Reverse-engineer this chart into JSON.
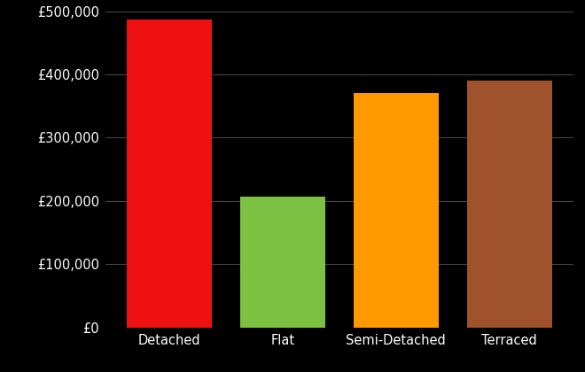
{
  "categories": [
    "Detached",
    "Flat",
    "Semi-Detached",
    "Terraced"
  ],
  "values": [
    487000,
    207000,
    370000,
    390000
  ],
  "bar_colors": [
    "#ee1111",
    "#7dc142",
    "#ff9900",
    "#a0522d"
  ],
  "background_color": "#000000",
  "text_color": "#ffffff",
  "grid_color": "#555555",
  "ylim": [
    0,
    500000
  ],
  "yticks": [
    0,
    100000,
    200000,
    300000,
    400000,
    500000
  ],
  "bar_width": 0.75,
  "tick_fontsize": 10.5,
  "figsize": [
    6.6,
    4.2
  ],
  "dpi": 100
}
